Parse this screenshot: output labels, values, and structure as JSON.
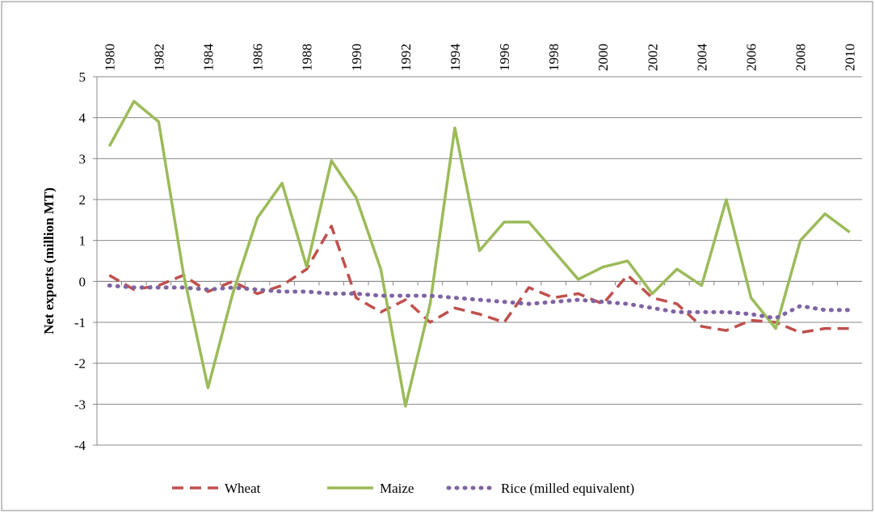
{
  "chart_data": {
    "type": "line",
    "y_label": "Net exports (million MT)",
    "categories": [
      "1980",
      null,
      "1982",
      null,
      "1984",
      null,
      "1986",
      null,
      "1988",
      null,
      "1990",
      null,
      "1992",
      null,
      "1994",
      null,
      "1996",
      null,
      "1998",
      null,
      "2000",
      null,
      "2002",
      null,
      "2004",
      null,
      "2006",
      null,
      "2008",
      null,
      "2010"
    ],
    "series": [
      {
        "name": "Wheat",
        "color": "#c0504d",
        "style": "dashed",
        "values": [
          0.15,
          -0.2,
          -0.1,
          0.15,
          -0.25,
          0.0,
          -0.3,
          -0.1,
          0.3,
          1.35,
          -0.4,
          -0.75,
          -0.45,
          -1.0,
          -0.65,
          -0.8,
          -1.0,
          -0.15,
          -0.4,
          -0.3,
          -0.55,
          0.15,
          -0.4,
          -0.55,
          -1.1,
          -1.2,
          -0.95,
          -1.0,
          -1.25,
          -1.15,
          -1.15
        ]
      },
      {
        "name": "Maize",
        "color": "#9bbb59",
        "style": "solid",
        "values": [
          3.3,
          4.4,
          3.9,
          0.2,
          -2.6,
          -0.3,
          1.55,
          2.4,
          0.35,
          2.95,
          2.05,
          0.3,
          -3.05,
          -0.55,
          3.75,
          0.75,
          1.45,
          1.45,
          0.75,
          0.05,
          0.35,
          0.5,
          -0.3,
          0.3,
          -0.1,
          2.0,
          -0.4,
          -1.15,
          1.0,
          1.65,
          1.2
        ]
      },
      {
        "name": "Rice (milled equivalent)",
        "color": "#8064a2",
        "style": "dotted",
        "values": [
          -0.1,
          -0.15,
          -0.15,
          -0.15,
          -0.2,
          -0.15,
          -0.2,
          -0.25,
          -0.25,
          -0.3,
          -0.3,
          -0.35,
          -0.35,
          -0.35,
          -0.4,
          -0.45,
          -0.5,
          -0.55,
          -0.5,
          -0.45,
          -0.5,
          -0.55,
          -0.65,
          -0.75,
          -0.75,
          -0.75,
          -0.8,
          -0.9,
          -0.6,
          -0.7,
          -0.7
        ]
      }
    ],
    "ylim": [
      -4,
      5
    ],
    "yticks": [
      -4,
      -3,
      -2,
      -1,
      0,
      1,
      2,
      3,
      4,
      5
    ],
    "grid": true,
    "legend": "bottom"
  }
}
